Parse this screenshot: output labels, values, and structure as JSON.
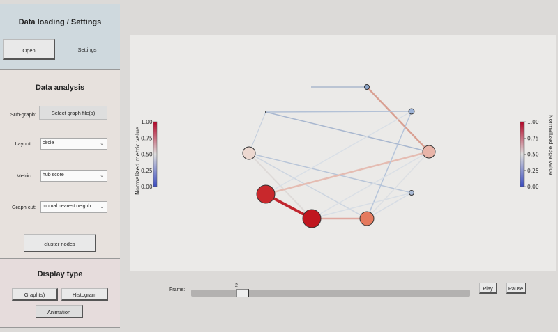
{
  "left_panel": {
    "loading": {
      "title": "Data loading / Settings",
      "open": "Open",
      "settings": "Settings"
    },
    "analysis": {
      "title": "Data analysis",
      "subgraph_label": "Sub-graph:",
      "subgraph_button": "Select graph file(s)",
      "layout_label": "Layout:",
      "layout_value": "circle",
      "metric_label": "Metric:",
      "metric_value": "hub score",
      "graphcut_label": "Graph cut:",
      "graphcut_value": "mutual nearest neighb",
      "cluster_button": "cluster nodes"
    },
    "display": {
      "title": "Display type",
      "graphs": "Graph(s)",
      "histogram": "Histogram",
      "animation": "Animation"
    }
  },
  "plot": {
    "metric_colorbar": {
      "label": "Normalized metric value",
      "ticks": [
        "1.00",
        "0.75",
        "0.50",
        "0.25",
        "0.00"
      ]
    },
    "edge_colorbar": {
      "label": "Normalized edge value",
      "ticks": [
        "1.00",
        "0.75",
        "0.50",
        "0.25",
        "0.00"
      ]
    },
    "colormap": {
      "low": "#3b4cc0",
      "mid": "#dddddd",
      "high": "#b40426"
    }
  },
  "controls": {
    "frame_label": "Frame:",
    "frame_value": "2",
    "frame_fraction": 0.17,
    "play": "Play",
    "pause": "Pause"
  }
}
